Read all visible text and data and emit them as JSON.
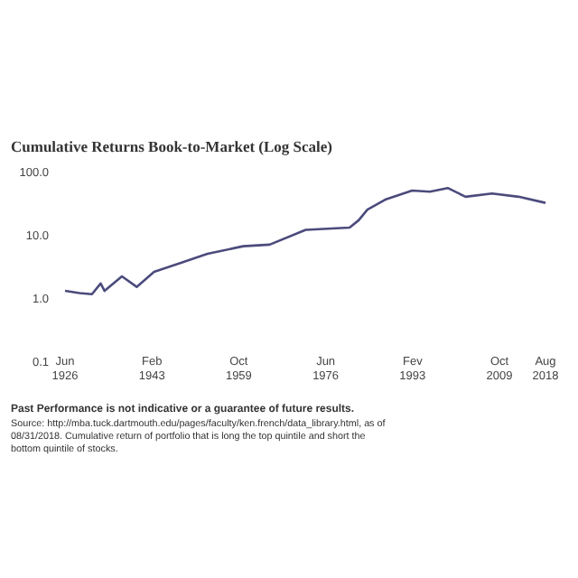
{
  "chart_data": {
    "type": "line",
    "title": "Cumulative Returns Book-to-Market (Log Scale)",
    "x": [
      "1926-06",
      "1929-03",
      "1931-08",
      "1933-04",
      "1934-01",
      "1937-05",
      "1940-03",
      "1943-07",
      "1948-09",
      "1953-10",
      "1960-08",
      "1965-09",
      "1972-08",
      "1981-01",
      "1982-10",
      "1984-06",
      "1987-11",
      "1993-01",
      "1996-06",
      "1999-11",
      "2003-04",
      "2008-05",
      "2013-06",
      "2018-08"
    ],
    "series": [
      {
        "color": "#4b4b7c",
        "values": [
          1.3,
          1.2,
          1.15,
          1.7,
          1.3,
          2.2,
          1.5,
          2.6,
          3.6,
          5,
          6.6,
          7,
          12,
          13,
          17,
          25,
          36,
          50,
          48,
          55,
          40,
          45,
          40,
          32
        ]
      }
    ],
    "log": true,
    "ylim": [
      0.1,
      100
    ],
    "yticks": [
      {
        "value": 0.1,
        "label": "0.1"
      },
      {
        "value": 1,
        "label": "1.0"
      },
      {
        "value": 10,
        "label": "10.0"
      },
      {
        "value": 100,
        "label": "100.0"
      }
    ],
    "xlim": [
      "1926-06",
      "2018-08"
    ],
    "xticks": [
      {
        "value": "1926-06",
        "label": "Jun 1926"
      },
      {
        "value": "1943-02",
        "label": "Feb 1943"
      },
      {
        "value": "1959-10",
        "label": "Oct 1959"
      },
      {
        "value": "1976-06",
        "label": "Jun 1976"
      },
      {
        "value": "1993-02",
        "label": "Fev 1993"
      },
      {
        "value": "2009-10",
        "label": "Oct 2009"
      },
      {
        "value": "2018-08",
        "label": "Aug 2018"
      }
    ],
    "grid": false,
    "line_style": "solid",
    "marker": "none",
    "annotations": [
      "Past Performance is not indicative or a guarantee of future results.",
      "Source: http://mba.tuck.dartmouth.edu/pages/faculty/ken.french/data_library.html, as of 08/31/2018. Cumulative return of portfolio that is long the top quintile and short the bottom quintile of stocks."
    ]
  }
}
